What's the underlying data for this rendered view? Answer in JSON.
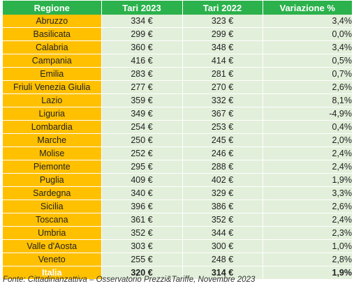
{
  "headers": {
    "regione": "Regione",
    "tari2023": "Tari 2023",
    "tari2022": "Tari 2022",
    "variazione": "Variazione %"
  },
  "rows": [
    {
      "regione": "Abruzzo",
      "t2023": "334 €",
      "t2022": "323 €",
      "var": "3,4%"
    },
    {
      "regione": "Basilicata",
      "t2023": "299 €",
      "t2022": "299 €",
      "var": "0,0%"
    },
    {
      "regione": "Calabria",
      "t2023": "360 €",
      "t2022": "348 €",
      "var": "3,4%"
    },
    {
      "regione": "Campania",
      "t2023": "416 €",
      "t2022": "414 €",
      "var": "0,5%"
    },
    {
      "regione": "Emilia",
      "t2023": "283 €",
      "t2022": "281 €",
      "var": "0,7%"
    },
    {
      "regione": "Friuli Venezia Giulia",
      "t2023": "277 €",
      "t2022": "270 €",
      "var": "2,6%"
    },
    {
      "regione": "Lazio",
      "t2023": "359 €",
      "t2022": "332 €",
      "var": "8,1%"
    },
    {
      "regione": "Liguria",
      "t2023": "349 €",
      "t2022": "367 €",
      "var": "-4,9%"
    },
    {
      "regione": "Lombardia",
      "t2023": "254 €",
      "t2022": "253 €",
      "var": "0,4%"
    },
    {
      "regione": "Marche",
      "t2023": "250 €",
      "t2022": "245 €",
      "var": "2,0%"
    },
    {
      "regione": "Molise",
      "t2023": "252 €",
      "t2022": "246 €",
      "var": "2,4%"
    },
    {
      "regione": "Piemonte",
      "t2023": "295 €",
      "t2022": "288 €",
      "var": "2,4%"
    },
    {
      "regione": "Puglia",
      "t2023": "409 €",
      "t2022": "402 €",
      "var": "1,9%"
    },
    {
      "regione": "Sardegna",
      "t2023": "340 €",
      "t2022": "329 €",
      "var": "3,3%"
    },
    {
      "regione": "Sicilia",
      "t2023": "396 €",
      "t2022": "386 €",
      "var": "2,6%"
    },
    {
      "regione": "Toscana",
      "t2023": "361 €",
      "t2022": "352 €",
      "var": "2,4%"
    },
    {
      "regione": "Umbria",
      "t2023": "352 €",
      "t2022": "344 €",
      "var": "2,3%"
    },
    {
      "regione": "Valle d'Aosta",
      "t2023": "303 €",
      "t2022": "300 €",
      "var": "1,0%"
    },
    {
      "regione": "Veneto",
      "t2023": "255 €",
      "t2022": "248 €",
      "var": "2,8%"
    }
  ],
  "total": {
    "regione": "Italia",
    "t2023": "320 €",
    "t2022": "314 €",
    "var": "1,9%"
  },
  "source": "Fonte: Cittadinanzattiva – Osservatorio Prezzi&Tariffe, Novembre 2023",
  "colors": {
    "header_green": "#2bb24c",
    "region_orange": "#ffc000",
    "cell_light_green": "#e2efda"
  }
}
